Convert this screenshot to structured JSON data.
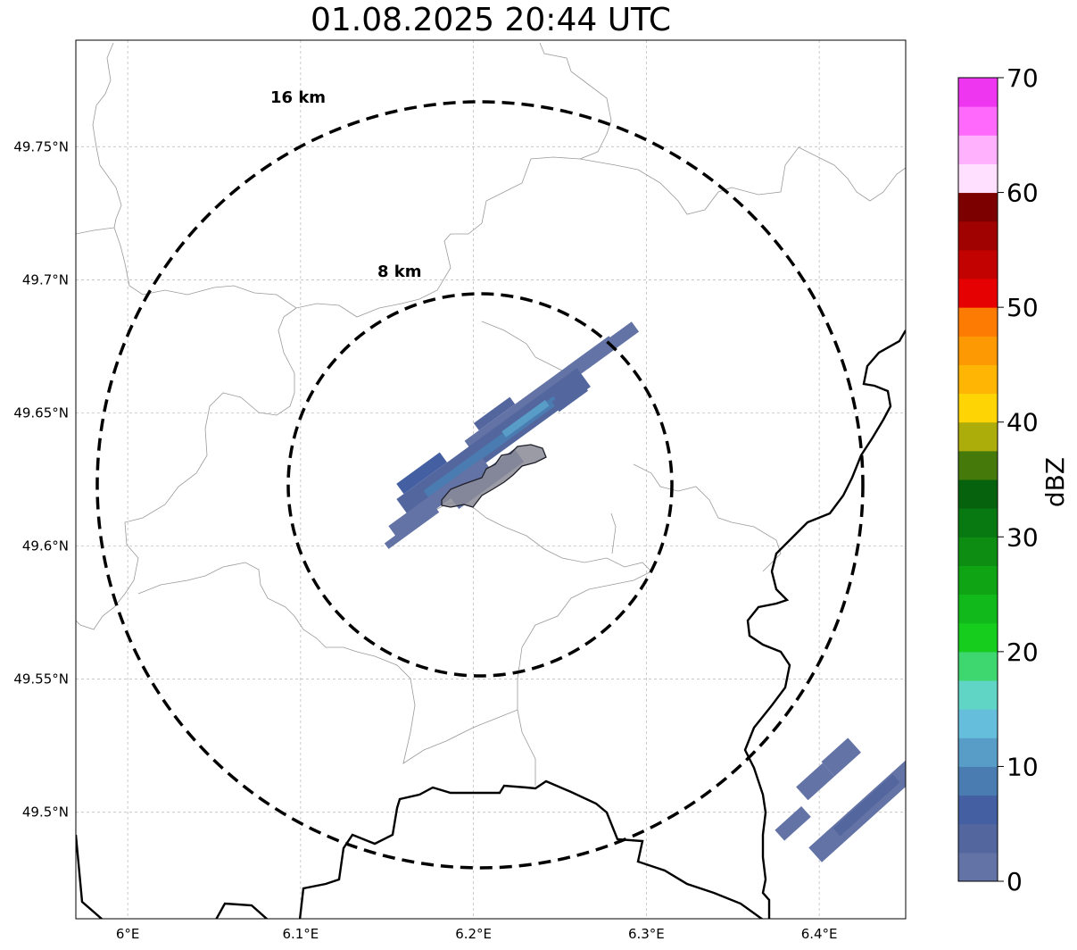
{
  "title": "01.08.2025 20:44 UTC",
  "map": {
    "lon_range": [
      5.97,
      6.45
    ],
    "lat_range": [
      49.46,
      49.79
    ],
    "lon_ticks": [
      {
        "v": 6.0,
        "label": "6°E"
      },
      {
        "v": 6.1,
        "label": "6.1°E"
      },
      {
        "v": 6.2,
        "label": "6.2°E"
      },
      {
        "v": 6.3,
        "label": "6.3°E"
      },
      {
        "v": 6.4,
        "label": "6.4°E"
      }
    ],
    "lat_ticks": [
      {
        "v": 49.75,
        "label": "49.75°N"
      },
      {
        "v": 49.7,
        "label": "49.7°N"
      },
      {
        "v": 49.65,
        "label": "49.65°N"
      },
      {
        "v": 49.6,
        "label": "49.6°N"
      },
      {
        "v": 49.55,
        "label": "49.55°N"
      },
      {
        "v": 49.5,
        "label": "49.5°N"
      }
    ],
    "grid": true,
    "range_rings": [
      {
        "label": "16 km",
        "radius_km": 16
      },
      {
        "label": "8 km",
        "radius_km": 8
      }
    ],
    "center": {
      "lon": 6.202,
      "lat": 49.623
    }
  },
  "colorbar": {
    "label": "dBZ",
    "ticks": [
      "0",
      "10",
      "20",
      "30",
      "40",
      "50",
      "60",
      "70"
    ],
    "colors": [
      "#6373a6",
      "#53669e",
      "#4460a2",
      "#4a7bb1",
      "#589dc7",
      "#65bfdc",
      "#60d5c5",
      "#3ed66e",
      "#16cc1c",
      "#12b91a",
      "#0fa414",
      "#0d8e12",
      "#087810",
      "#06620d",
      "#457a0a",
      "#acad0a",
      "#fed405",
      "#feb504",
      "#fd9903",
      "#fd7a03",
      "#e50101",
      "#c20101",
      "#a00101",
      "#7d0000",
      "#ffe0fe",
      "#ffb1fd",
      "#ff6afd",
      "#ee36f1"
    ]
  }
}
